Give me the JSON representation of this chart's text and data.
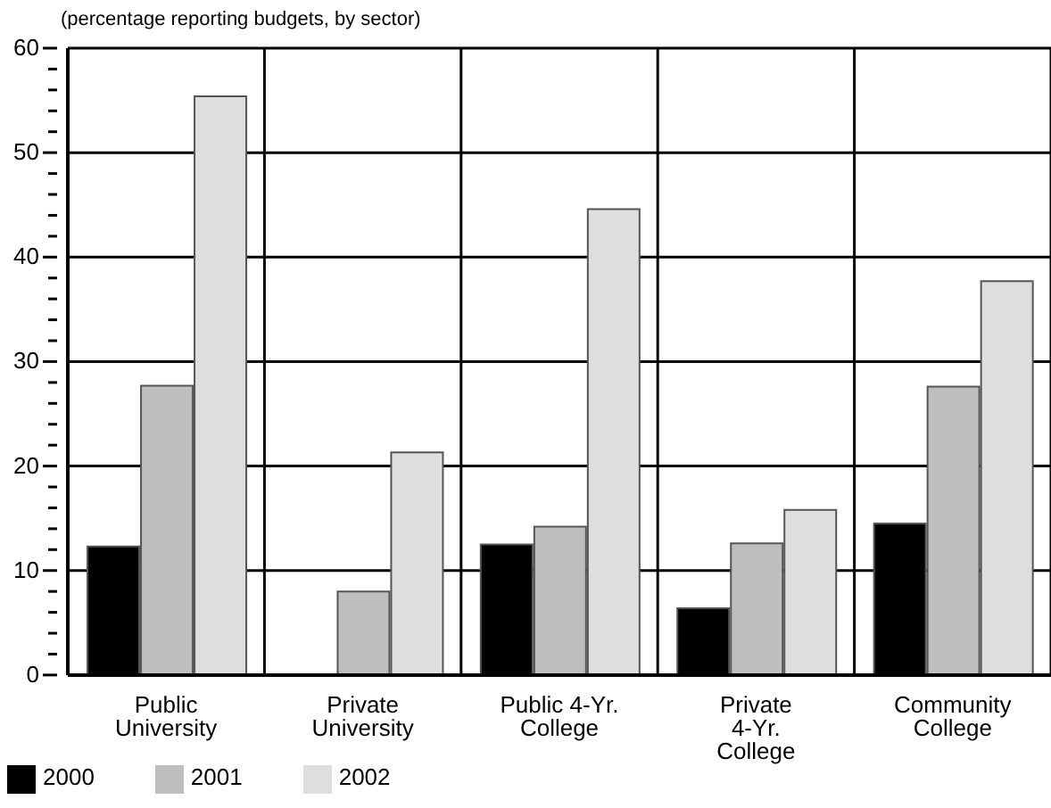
{
  "chart_data": {
    "type": "bar",
    "ylabel": "(percentage reporting budgets, by sector)",
    "categories": [
      "Public University",
      "Private University",
      "Public 4-Yr. College",
      "Private 4-Yr. College",
      "Community College"
    ],
    "series": [
      {
        "name": "2000",
        "color": "#000000",
        "values": [
          12.3,
          null,
          12.5,
          6.4,
          14.5
        ]
      },
      {
        "name": "2001",
        "color": "#bebebe",
        "values": [
          27.7,
          8.0,
          14.2,
          12.6,
          27.6
        ]
      },
      {
        "name": "2002",
        "color": "#dedede",
        "values": [
          55.4,
          21.3,
          44.6,
          15.8,
          37.7
        ]
      }
    ],
    "ylim": [
      0,
      60
    ],
    "yticks": [
      0,
      {
        "value": 2,
        "label": null
      },
      {
        "value": 4,
        "label": null
      },
      {
        "value": 6,
        "label": null
      },
      {
        "value": 8,
        "label": null
      },
      10,
      {
        "value": 12,
        "label": null
      },
      {
        "value": 14,
        "label": null
      },
      {
        "value": 16,
        "label": null
      },
      {
        "value": 18,
        "label": null
      },
      20,
      {
        "value": 22,
        "label": null
      },
      {
        "value": 24,
        "label": null
      },
      {
        "value": 26,
        "label": null
      },
      {
        "value": 28,
        "label": null
      },
      30,
      {
        "value": 32,
        "label": null
      },
      {
        "value": 34,
        "label": null
      },
      {
        "value": 36,
        "label": null
      },
      {
        "value": 38,
        "label": null
      },
      40,
      {
        "value": 42,
        "label": null
      },
      {
        "value": 44,
        "label": null
      },
      {
        "value": 46,
        "label": null
      },
      {
        "value": 48,
        "label": null
      },
      50,
      {
        "value": 52,
        "label": null
      },
      {
        "value": 54,
        "label": null
      },
      {
        "value": 56,
        "label": null
      },
      {
        "value": 58,
        "label": null
      },
      60
    ],
    "grid": true,
    "legend": "bottom left"
  }
}
